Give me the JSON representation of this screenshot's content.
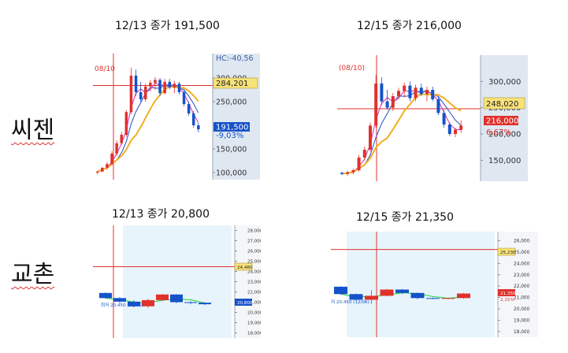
{
  "stocks": [
    {
      "name": "씨젠"
    },
    {
      "name": "교촌"
    }
  ],
  "panels": [
    {
      "caption": "12/13 종가 191,500",
      "marker_label": "08/10",
      "axis_top_label": "HC:-40,56",
      "ticks": [
        "300,000",
        "250,000",
        "200,000",
        "150,000",
        "100,000"
      ],
      "ref_label": "284,201",
      "price_label": "191,500",
      "change_label": "-9,03%",
      "colors": {
        "ref": "#f8e27a",
        "price": "#1652c9",
        "change": "#1652c9"
      }
    },
    {
      "caption": "12/15 종가 216,000",
      "marker_label": "(08/10)",
      "axis_top_label": "",
      "ticks": [
        "300,000",
        "250,000",
        "200,000",
        "150,000"
      ],
      "ref_label": "248,020",
      "price_label": "216,000",
      "change_label": "6,67%",
      "colors": {
        "ref": "#f8e27a",
        "price": "#e0312b",
        "change": "#e0312b"
      }
    },
    {
      "caption": "12/13 종가 20,800",
      "marker_label": "최저 20,450 (12/06)",
      "axis_top_label": "",
      "ticks": [
        "28,000",
        "27,000",
        "26,000",
        "25,000",
        "24,000",
        "23,000",
        "22,000",
        "21,000",
        "20,000",
        "19,000",
        "18,000"
      ],
      "ref_label": "24,460",
      "price_label": "20,800",
      "change_label": "",
      "colors": {
        "ref": "#f8e27a",
        "price": "#1652c9",
        "change": "#1652c9"
      }
    },
    {
      "caption": "12/15 종가 21,350",
      "marker_label": "저 20,450 (12/06)",
      "axis_top_label": "",
      "ticks": [
        "26,000",
        "25,000",
        "24,000",
        "23,000",
        "22,000",
        "21,000",
        "20,000",
        "19,000",
        "18,000"
      ],
      "ref_label": "25,230",
      "price_label": "21,350",
      "change_label": "2,15%",
      "colors": {
        "ref": "#f8e27a",
        "price": "#e0312b",
        "change": "#e0312b"
      }
    }
  ],
  "chart_data": [
    {
      "type": "candlestick",
      "y_unit": "KRW",
      "ylim": [
        85000,
        335000
      ],
      "ref_value": 284201,
      "last_value": 191500,
      "series": [
        {
          "values": [
            [
              100000,
              104000,
              96000,
              102000
            ],
            [
              102000,
              112000,
              101000,
              110000
            ],
            [
              110000,
              122000,
              106000,
              118000
            ],
            [
              118000,
              145000,
              116000,
              140000
            ],
            [
              140000,
              168000,
              135000,
              162000
            ],
            [
              162000,
              186000,
              158000,
              180000
            ],
            [
              180000,
              232000,
              176000,
              228000
            ],
            [
              228000,
              322000,
              224000,
              305000
            ],
            [
              305000,
              318000,
              262000,
              270000
            ],
            [
              270000,
              292000,
              250000,
              255000
            ],
            [
              255000,
              288000,
              250000,
              282000
            ],
            [
              282000,
              296000,
              272000,
              290000
            ],
            [
              290000,
              302000,
              275000,
              296000
            ],
            [
              296000,
              300000,
              262000,
              268000
            ],
            [
              268000,
              298000,
              265000,
              292000
            ],
            [
              292000,
              298000,
              276000,
              280000
            ],
            [
              280000,
              294000,
              268000,
              288000
            ],
            [
              288000,
              292000,
              265000,
              270000
            ],
            [
              270000,
              276000,
              240000,
              245000
            ],
            [
              245000,
              250000,
              220000,
              225000
            ],
            [
              225000,
              230000,
              195000,
              200000
            ],
            [
              200000,
              205000,
              185000,
              191500
            ]
          ]
        }
      ]
    },
    {
      "type": "candlestick",
      "y_unit": "KRW",
      "ylim": [
        110000,
        335000
      ],
      "ref_value": 248020,
      "last_value": 216000,
      "series": [
        {
          "values": [
            [
              126000,
              128000,
              122000,
              124000
            ],
            [
              124000,
              130000,
              120000,
              127000
            ],
            [
              127000,
              134000,
              123000,
              131000
            ],
            [
              131000,
              160000,
              128000,
              155000
            ],
            [
              155000,
              176000,
              150000,
              170000
            ],
            [
              170000,
              222000,
              166000,
              216000
            ],
            [
              216000,
              312000,
              212000,
              296000
            ],
            [
              296000,
              308000,
              255000,
              262000
            ],
            [
              262000,
              284000,
              246000,
              250000
            ],
            [
              250000,
              278000,
              244000,
              272000
            ],
            [
              272000,
              288000,
              266000,
              282000
            ],
            [
              282000,
              298000,
              270000,
              292000
            ],
            [
              292000,
              300000,
              262000,
              268000
            ],
            [
              268000,
              294000,
              262000,
              288000
            ],
            [
              288000,
              296000,
              272000,
              276000
            ],
            [
              276000,
              290000,
              262000,
              284000
            ],
            [
              284000,
              290000,
              262000,
              266000
            ],
            [
              266000,
              272000,
              236000,
              240000
            ],
            [
              240000,
              246000,
              212000,
              218000
            ],
            [
              218000,
              222000,
              196000,
              200000
            ],
            [
              200000,
              212000,
              194000,
              208000
            ],
            [
              208000,
              226000,
              202000,
              216000
            ]
          ]
        }
      ]
    },
    {
      "type": "candlestick",
      "y_unit": "KRW",
      "ylim": [
        17500,
        28500
      ],
      "ref_value": 24460,
      "last_value": 20800,
      "min_label_value": 20450,
      "series": [
        {
          "values": [
            [
              21900,
              21950,
              21350,
              21400
            ],
            [
              21400,
              21500,
              20900,
              21050
            ],
            [
              21050,
              21200,
              20500,
              20600
            ],
            [
              20600,
              21350,
              20450,
              21200
            ],
            [
              21200,
              21800,
              21100,
              21750
            ],
            [
              21750,
              21800,
              20900,
              21000
            ],
            [
              21000,
              21100,
              20800,
              20950
            ],
            [
              20950,
              21000,
              20700,
              20800
            ]
          ]
        }
      ]
    },
    {
      "type": "candlestick",
      "y_unit": "KRW",
      "ylim": [
        17500,
        26800
      ],
      "ref_value": 25230,
      "last_value": 21350,
      "min_label_value": 20450,
      "series": [
        {
          "values": [
            [
              21950,
              22000,
              21250,
              21300
            ],
            [
              21300,
              21350,
              20700,
              20800
            ],
            [
              20800,
              21650,
              20450,
              21150
            ],
            [
              21150,
              21750,
              21100,
              21700
            ],
            [
              21700,
              21750,
              21300,
              21400
            ],
            [
              21400,
              21450,
              20850,
              20950
            ],
            [
              20950,
              21000,
              20850,
              20900
            ],
            [
              20900,
              21000,
              20850,
              20950
            ],
            [
              20950,
              21400,
              20900,
              21350
            ]
          ]
        }
      ]
    }
  ]
}
